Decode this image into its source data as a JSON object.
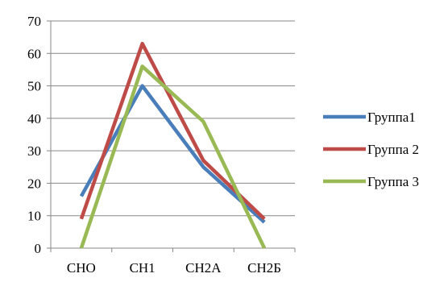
{
  "chart_data": {
    "type": "line",
    "title": "",
    "xlabel": "",
    "ylabel": "",
    "categories": [
      "СНО",
      "СН1",
      "СН2А",
      "СН2Б"
    ],
    "ylim": [
      0,
      70
    ],
    "yticks": [
      0,
      10,
      20,
      30,
      40,
      50,
      60,
      70
    ],
    "grid": true,
    "legend_position": "right",
    "series": [
      {
        "name": "Группа1",
        "color": "#4A7EBB",
        "values": [
          16,
          50,
          25,
          8
        ]
      },
      {
        "name": "Группа 2",
        "color": "#BE4B48",
        "values": [
          9,
          63,
          27,
          9
        ]
      },
      {
        "name": "Группа 3",
        "color": "#98B954",
        "values": [
          0,
          56,
          39,
          0
        ]
      }
    ]
  }
}
